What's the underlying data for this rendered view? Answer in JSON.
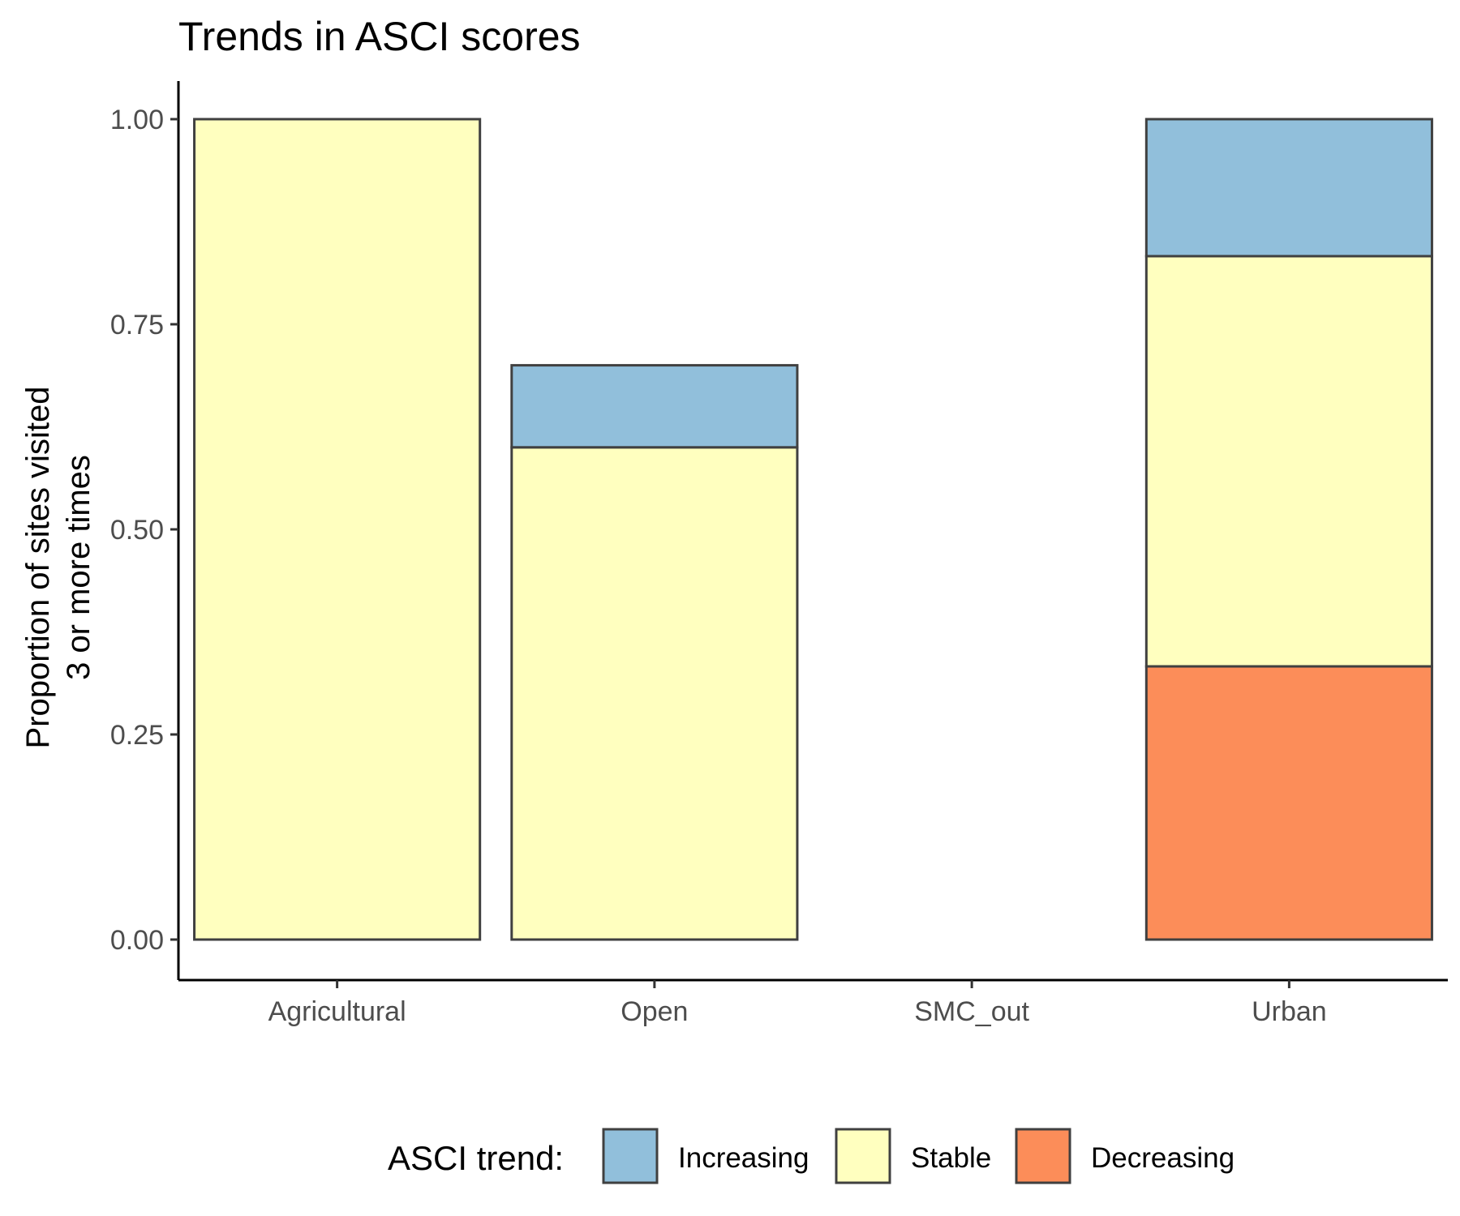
{
  "chart_data": {
    "type": "bar",
    "stacked": true,
    "title": "Trends in ASCI scores",
    "xlabel": "",
    "ylabel": [
      "Proportion of sites visited",
      "3 or more times"
    ],
    "ylim": [
      0,
      1
    ],
    "yticks": [
      0,
      0.25,
      0.5,
      0.75,
      1
    ],
    "ytick_labels": [
      "0.00",
      "0.25",
      "0.50",
      "0.75",
      "1.00"
    ],
    "categories": [
      "Agricultural",
      "Open",
      "SMC_out",
      "Urban"
    ],
    "series": [
      {
        "name": "Decreasing",
        "color": "#fc8d59",
        "values": [
          0,
          0,
          0,
          0.333
        ]
      },
      {
        "name": "Stable",
        "color": "#ffffbf",
        "values": [
          1.0,
          0.6,
          0,
          0.5
        ]
      },
      {
        "name": "Increasing",
        "color": "#91bfdb",
        "values": [
          0,
          0.1,
          0,
          0.167
        ]
      }
    ],
    "legend": {
      "title": "ASCI trend:",
      "position": "bottom",
      "order": [
        "Increasing",
        "Stable",
        "Decreasing"
      ]
    },
    "grid": false,
    "bar_outline_color": "#404040"
  }
}
